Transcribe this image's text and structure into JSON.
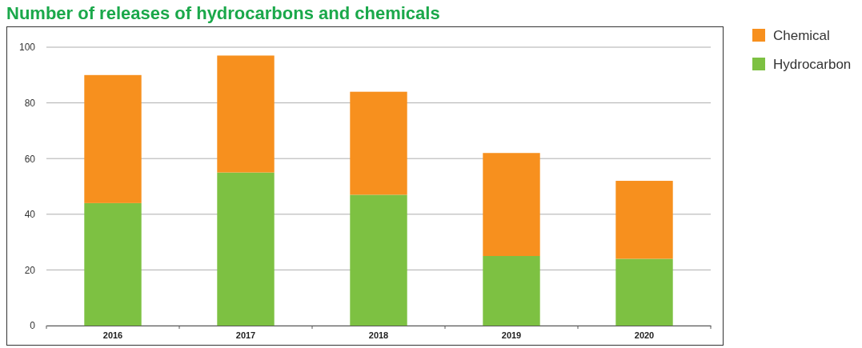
{
  "chart_data": {
    "type": "bar",
    "title": "Number of releases of hydrocarbons and chemicals",
    "categories": [
      "2016",
      "2017",
      "2018",
      "2019",
      "2020"
    ],
    "series": [
      {
        "name": "Hydrocarbon",
        "color": "#7dc142",
        "values": [
          44,
          55,
          47,
          25,
          24
        ]
      },
      {
        "name": "Chemical",
        "color": "#f7901e",
        "values": [
          46,
          42,
          37,
          37,
          28
        ]
      }
    ],
    "stacked": true,
    "ylim": [
      0,
      100
    ],
    "yticks": [
      0,
      20,
      40,
      60,
      80,
      100
    ],
    "grid": "y",
    "legend": "top right"
  }
}
